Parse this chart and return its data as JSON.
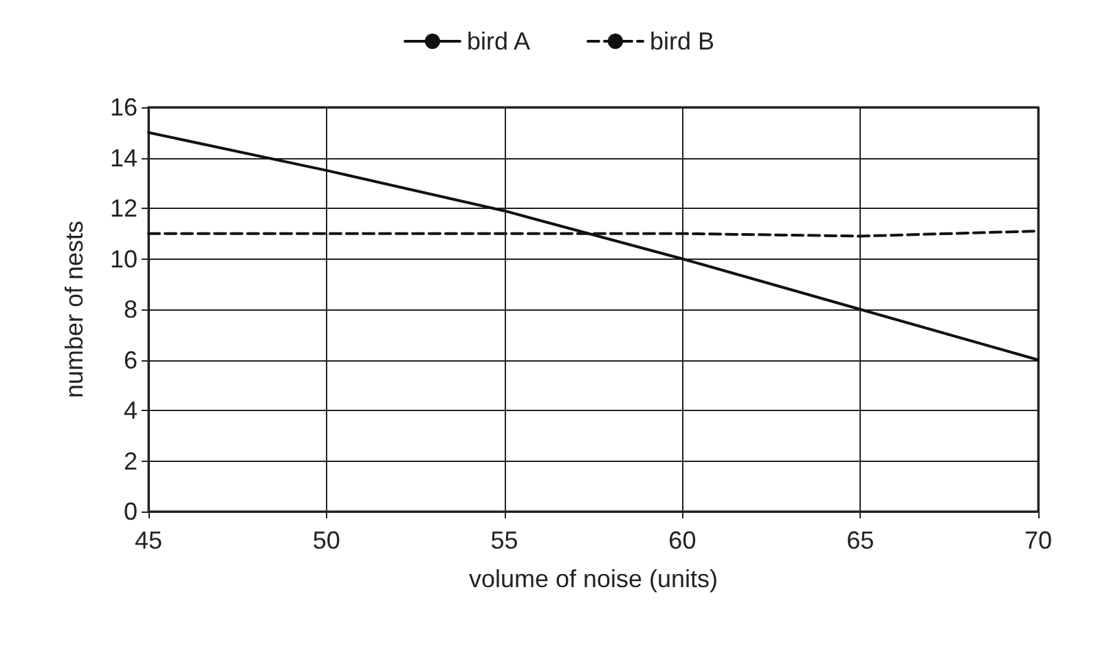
{
  "chart_data": {
    "type": "line",
    "xlabel": "volume of noise (units)",
    "ylabel": "number of nests",
    "x": [
      45,
      50,
      55,
      60,
      65,
      70
    ],
    "series": [
      {
        "name": "bird A",
        "color": "#111111",
        "line_style": "solid",
        "values": [
          15,
          13.5,
          11.9,
          10,
          8,
          6
        ]
      },
      {
        "name": "bird B",
        "color": "#111111",
        "line_style": "dashed",
        "values": [
          11,
          11,
          11,
          11,
          10.9,
          11.1
        ]
      }
    ],
    "xlim": [
      45,
      70
    ],
    "xticks": [
      45,
      50,
      55,
      60,
      65,
      70
    ],
    "ylim": [
      0,
      16
    ],
    "yticks": [
      0,
      2,
      4,
      6,
      8,
      10,
      12,
      14,
      16
    ],
    "grid": true,
    "legend": "top",
    "marker": "none"
  }
}
